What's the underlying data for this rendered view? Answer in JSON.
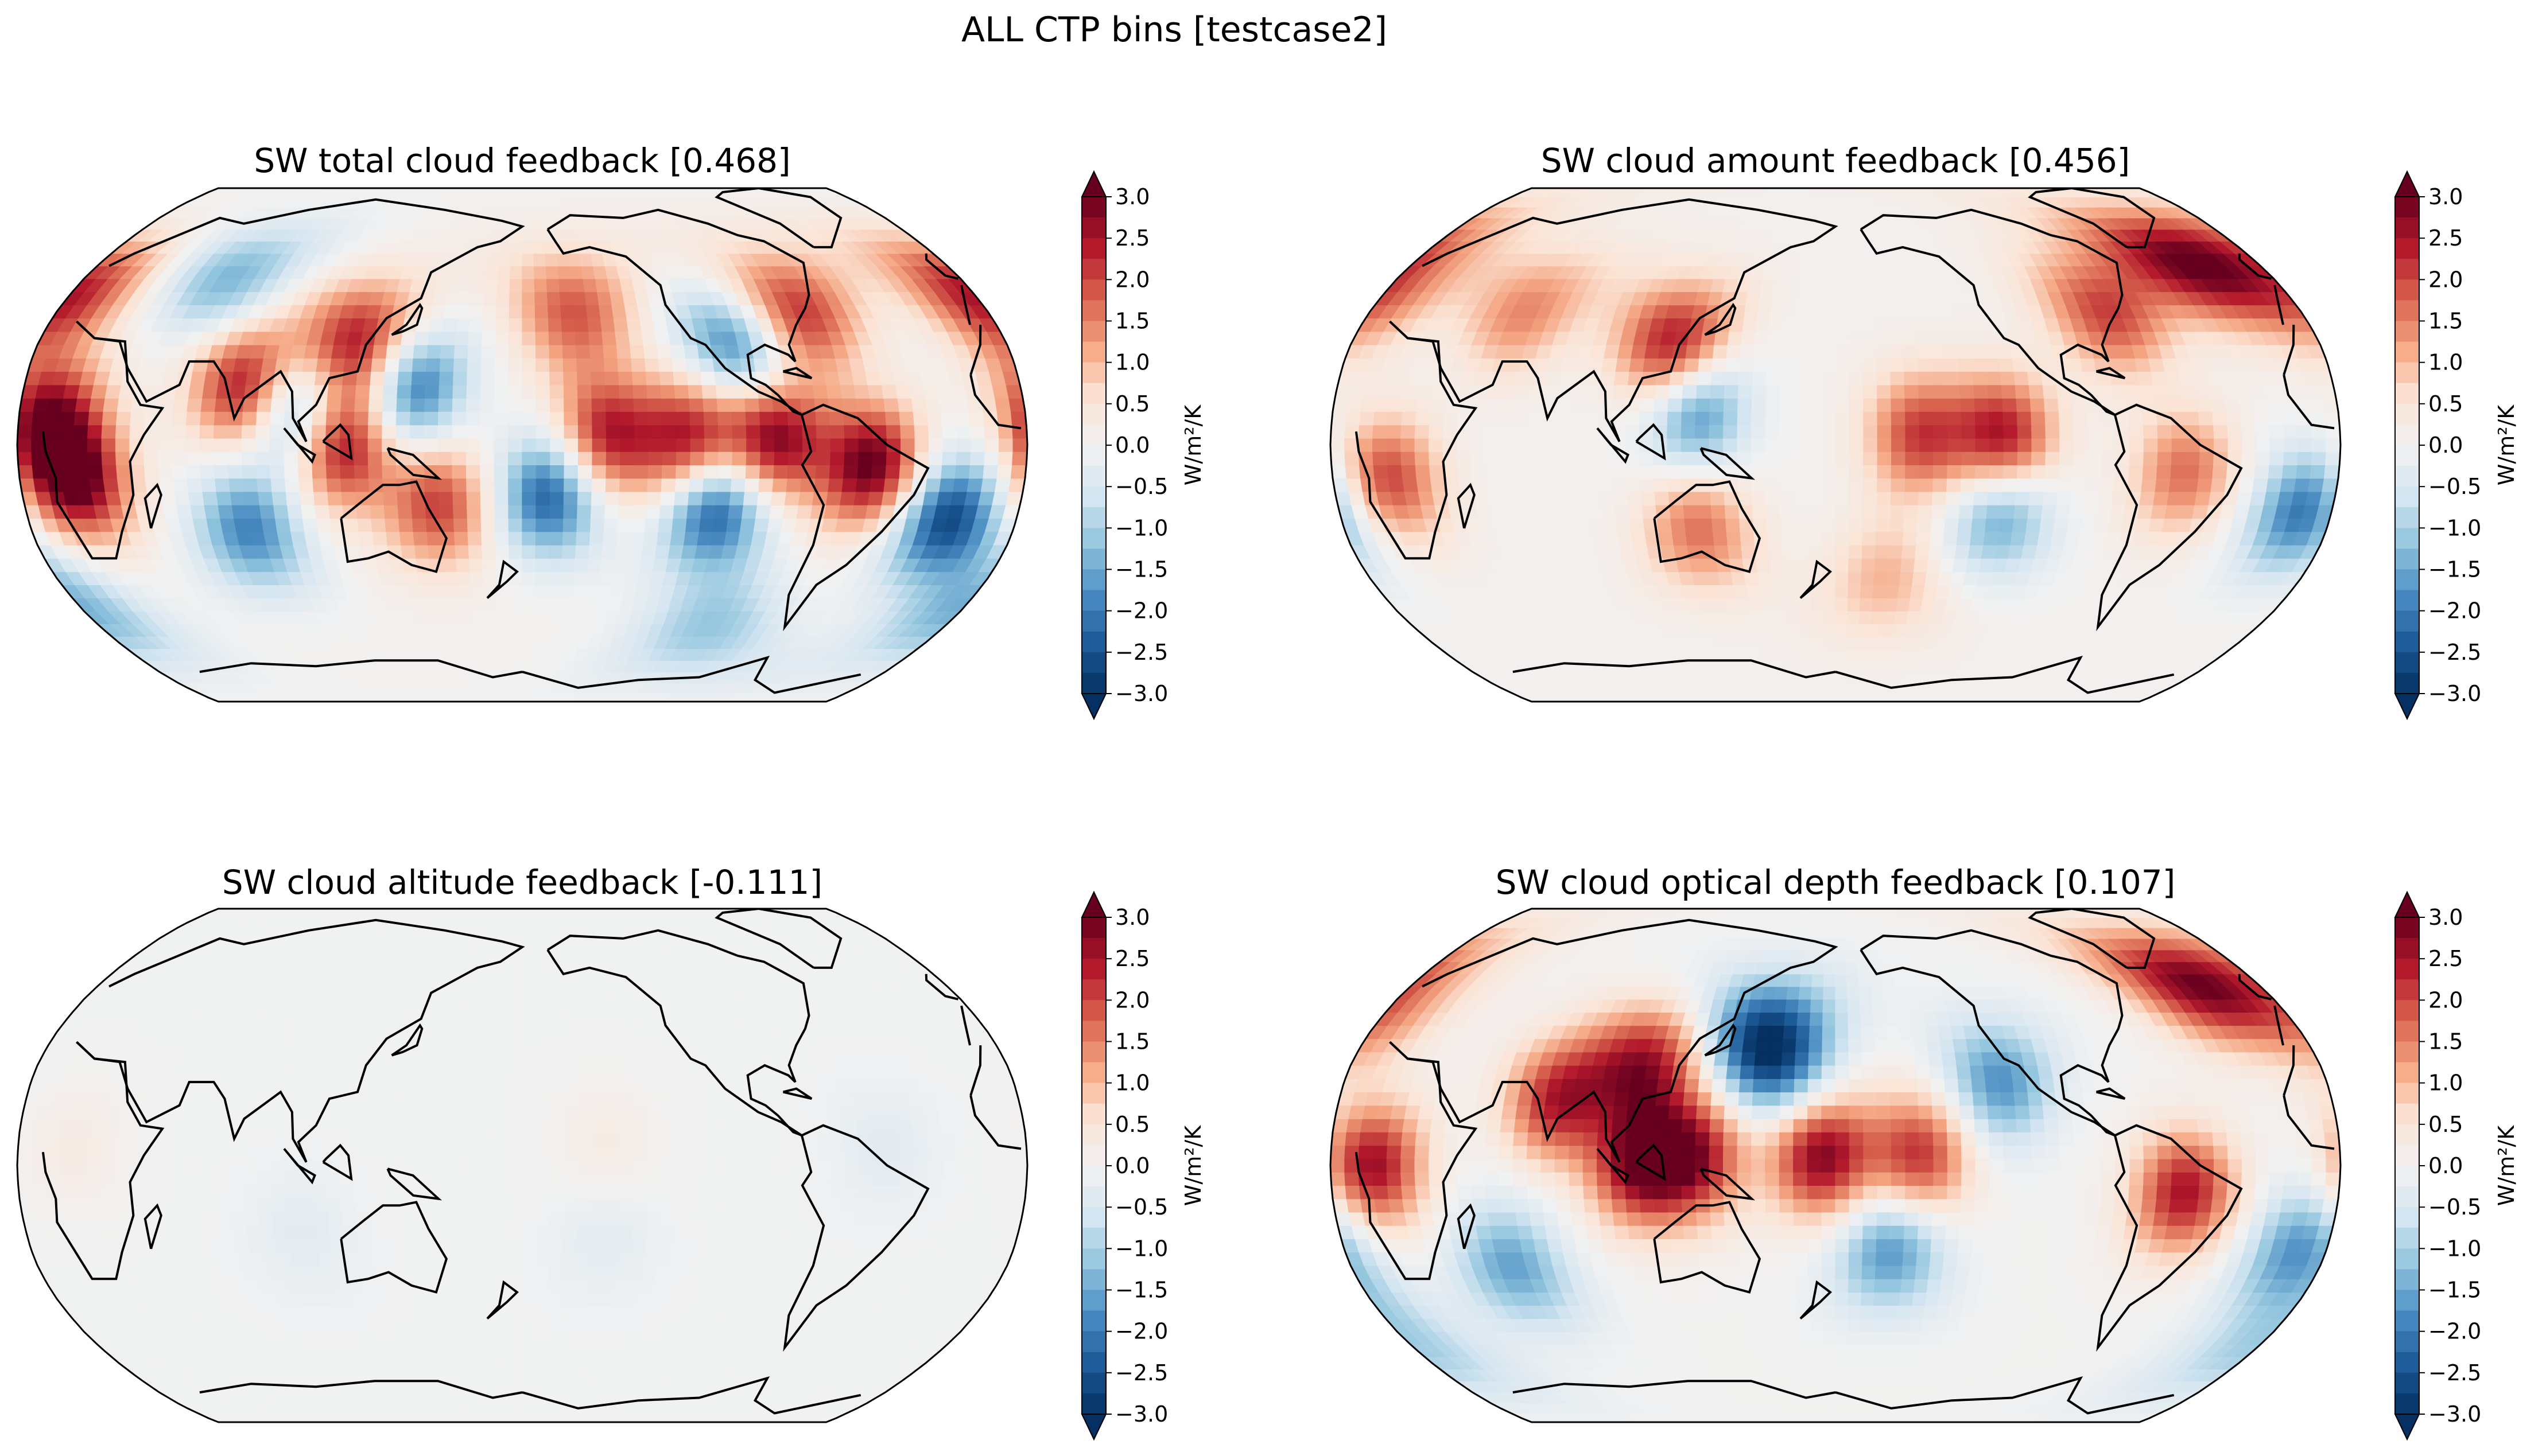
{
  "figure": {
    "suptitle": "ALL CTP bins [testcase2]"
  },
  "colorbar": {
    "label": "W/m²/K",
    "ticks": [
      "3.0",
      "2.5",
      "2.0",
      "1.5",
      "1.0",
      "0.5",
      "0.0",
      "−0.5",
      "−1.0",
      "−1.5",
      "−2.0",
      "−2.5",
      "−3.0"
    ],
    "range": [
      -3.0,
      3.0
    ],
    "extend": "both",
    "cmap": "RdBu_r"
  },
  "colors": {
    "ramp": [
      "#053061",
      "#1d5a98",
      "#4a8cc2",
      "#92c5de",
      "#d6e6f1",
      "#f1f1f1",
      "#fbe3d4",
      "#f4a582",
      "#d6604d",
      "#b2182b",
      "#67001f"
    ],
    "coast": "#000000",
    "near_zero": "#eef2f5"
  },
  "chart_data": [
    {
      "type": "heatmap",
      "projection": "Robinson",
      "title": "SW total cloud feedback [0.468]",
      "global_mean": 0.468,
      "features": [
        {
          "lon": -90,
          "lat": 2,
          "v": 2.8
        },
        {
          "lon": -120,
          "lat": 1,
          "v": 2.6
        },
        {
          "lon": -150,
          "lat": 3,
          "v": 2.4
        },
        {
          "lon": -55,
          "lat": -6,
          "v": 3.0
        },
        {
          "lon": 20,
          "lat": -10,
          "v": 3.0
        },
        {
          "lon": 10,
          "lat": 8,
          "v": 2.6
        },
        {
          "lon": 115,
          "lat": 0,
          "v": 2.8
        },
        {
          "lon": 80,
          "lat": 18,
          "v": 2.6
        },
        {
          "lon": 120,
          "lat": 30,
          "v": 2.8
        },
        {
          "lon": 140,
          "lat": 18,
          "v": -2.4
        },
        {
          "lon": 100,
          "lat": 10,
          "v": -2.2
        },
        {
          "lon": -170,
          "lat": -15,
          "v": -2.5
        },
        {
          "lon": -110,
          "lat": -18,
          "v": -2.8
        },
        {
          "lon": -25,
          "lat": -22,
          "v": -2.8
        },
        {
          "lon": 80,
          "lat": -25,
          "v": -2.0
        },
        {
          "lon": 150,
          "lat": -18,
          "v": 2.0
        },
        {
          "lon": -75,
          "lat": 40,
          "v": 2.4
        },
        {
          "lon": -160,
          "lat": 40,
          "v": 1.8
        },
        {
          "lon": 0,
          "lat": 45,
          "v": 2.4
        },
        {
          "lon": 60,
          "lat": 50,
          "v": -1.5
        },
        {
          "lon": -100,
          "lat": 30,
          "v": -2.2
        },
        {
          "lon": 0,
          "lat": -50,
          "v": -1.4
        },
        {
          "lon": -100,
          "lat": -55,
          "v": -1.2
        }
      ]
    },
    {
      "type": "heatmap",
      "projection": "Robinson",
      "title": "SW cloud amount feedback [0.456]",
      "global_mean": 0.456,
      "features": [
        {
          "lon": -120,
          "lat": 2,
          "v": 2.6
        },
        {
          "lon": -150,
          "lat": 3,
          "v": 2.0
        },
        {
          "lon": 120,
          "lat": 30,
          "v": 2.6
        },
        {
          "lon": 20,
          "lat": -10,
          "v": 2.0
        },
        {
          "lon": -55,
          "lat": -8,
          "v": 1.6
        },
        {
          "lon": 130,
          "lat": -25,
          "v": 1.6
        },
        {
          "lon": 130,
          "lat": 10,
          "v": -2.0
        },
        {
          "lon": -120,
          "lat": -20,
          "v": -1.8
        },
        {
          "lon": -10,
          "lat": -20,
          "v": -2.2
        },
        {
          "lon": 0,
          "lat": 45,
          "v": 1.6
        },
        {
          "lon": -75,
          "lat": 40,
          "v": 2.0
        },
        {
          "lon": -30,
          "lat": 55,
          "v": 2.5
        },
        {
          "lon": 60,
          "lat": 40,
          "v": 1.4
        },
        {
          "lon": -160,
          "lat": -40,
          "v": 1.0
        }
      ]
    },
    {
      "type": "heatmap",
      "projection": "Robinson",
      "title": "SW cloud altitude feedback [-0.111]",
      "global_mean": -0.111,
      "features": [
        {
          "lon": -150,
          "lat": 5,
          "v": 0.3
        },
        {
          "lon": 20,
          "lat": 5,
          "v": 0.3
        },
        {
          "lon": -50,
          "lat": 5,
          "v": -0.3
        },
        {
          "lon": -150,
          "lat": -20,
          "v": -0.3
        },
        {
          "lon": 100,
          "lat": -20,
          "v": -0.3
        }
      ]
    },
    {
      "type": "heatmap",
      "projection": "Robinson",
      "title": "SW cloud optical depth feedback [0.107]",
      "global_mean": 0.107,
      "features": [
        {
          "lon": 110,
          "lat": 0,
          "v": 2.6
        },
        {
          "lon": 130,
          "lat": 3,
          "v": 2.4
        },
        {
          "lon": 175,
          "lat": 3,
          "v": 2.8
        },
        {
          "lon": -150,
          "lat": 3,
          "v": 2.2
        },
        {
          "lon": 15,
          "lat": 0,
          "v": 2.6
        },
        {
          "lon": -55,
          "lat": -8,
          "v": 2.5
        },
        {
          "lon": 80,
          "lat": 20,
          "v": 2.4
        },
        {
          "lon": 110,
          "lat": 30,
          "v": 2.4
        },
        {
          "lon": -30,
          "lat": 55,
          "v": 2.5
        },
        {
          "lon": 150,
          "lat": 40,
          "v": -2.0
        },
        {
          "lon": 160,
          "lat": 30,
          "v": -1.8
        },
        {
          "lon": -120,
          "lat": 25,
          "v": -1.8
        },
        {
          "lon": -160,
          "lat": -25,
          "v": -1.8
        },
        {
          "lon": 60,
          "lat": -30,
          "v": -1.6
        },
        {
          "lon": -10,
          "lat": -25,
          "v": -1.8
        },
        {
          "lon": 0,
          "lat": -55,
          "v": -1.0
        },
        {
          "lon": 0,
          "lat": 45,
          "v": 1.4
        }
      ]
    }
  ]
}
